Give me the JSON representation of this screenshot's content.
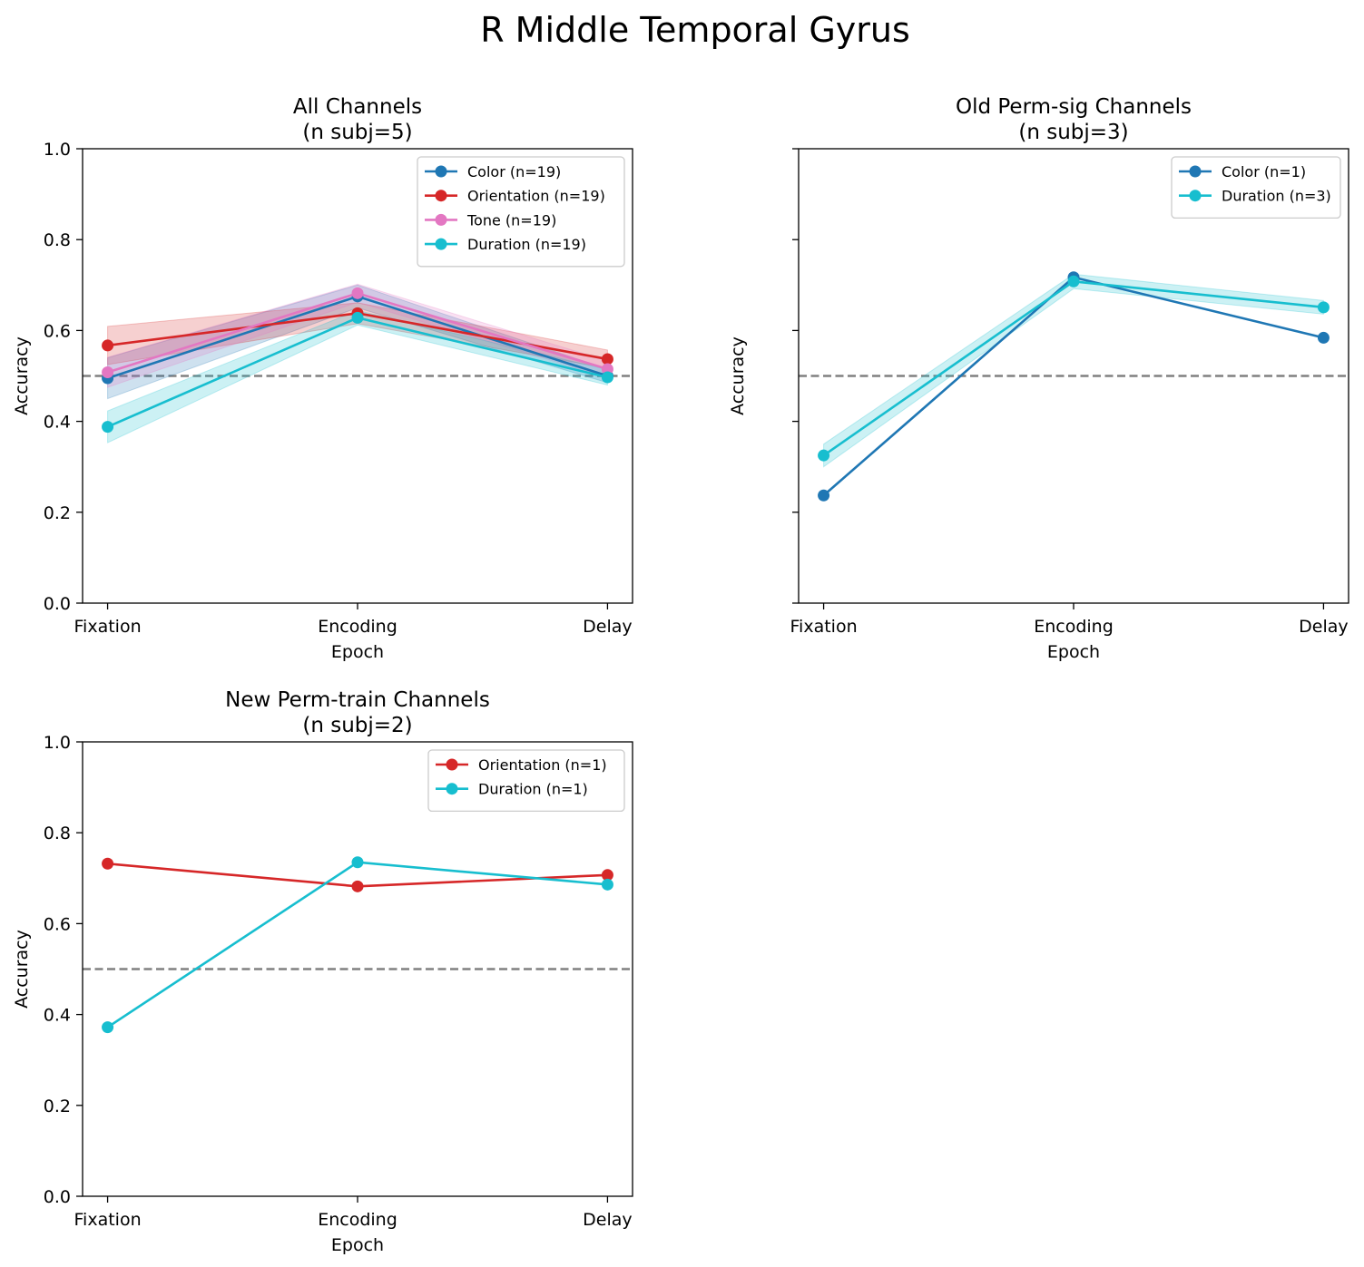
{
  "figure": {
    "suptitle": "R Middle Temporal Gyrus"
  },
  "chart_data": [
    {
      "type": "line",
      "title_line1": "All Channels",
      "title_line2": "(n subj=5)",
      "xlabel": "Epoch",
      "ylabel": "Accuracy",
      "categories": [
        "Fixation",
        "Encoding",
        "Delay"
      ],
      "ylim": [
        0,
        1
      ],
      "yticks": [
        "0.0",
        "0.2",
        "0.4",
        "0.6",
        "0.8",
        "1.0"
      ],
      "show_yticklabels": true,
      "reference_line": 0.5,
      "legend_position": "top-right",
      "series": [
        {
          "name": "Color (n=19)",
          "color": "#1f77b4",
          "values": [
            0.495,
            0.675,
            0.5
          ],
          "band_low": [
            0.45,
            0.65,
            0.485
          ],
          "band_high": [
            0.54,
            0.7,
            0.515
          ]
        },
        {
          "name": "Orientation (n=19)",
          "color": "#d62728",
          "values": [
            0.567,
            0.638,
            0.537
          ],
          "band_low": [
            0.525,
            0.615,
            0.517
          ],
          "band_high": [
            0.609,
            0.661,
            0.557
          ]
        },
        {
          "name": "Tone (n=19)",
          "color": "#e377c2",
          "values": [
            0.508,
            0.682,
            0.515
          ],
          "band_low": [
            0.475,
            0.662,
            0.497
          ],
          "band_high": [
            0.541,
            0.702,
            0.533
          ]
        },
        {
          "name": "Duration (n=19)",
          "color": "#17becf",
          "values": [
            0.388,
            0.628,
            0.497
          ],
          "band_low": [
            0.353,
            0.612,
            0.48
          ],
          "band_high": [
            0.423,
            0.644,
            0.514
          ]
        }
      ]
    },
    {
      "type": "line",
      "title_line1": "Old Perm-sig Channels",
      "title_line2": "(n subj=3)",
      "xlabel": "Epoch",
      "ylabel": "Accuracy",
      "categories": [
        "Fixation",
        "Encoding",
        "Delay"
      ],
      "ylim": [
        0,
        1
      ],
      "yticks": [
        "0.0",
        "0.2",
        "0.4",
        "0.6",
        "0.8",
        "1.0"
      ],
      "show_yticklabels": false,
      "reference_line": 0.5,
      "legend_position": "top-right",
      "series": [
        {
          "name": "Color (n=1)",
          "color": "#1f77b4",
          "values": [
            0.237,
            0.717,
            0.584
          ]
        },
        {
          "name": "Duration (n=3)",
          "color": "#17becf",
          "values": [
            0.325,
            0.708,
            0.651
          ],
          "band_low": [
            0.3,
            0.692,
            0.636
          ],
          "band_high": [
            0.35,
            0.724,
            0.666
          ]
        }
      ]
    },
    {
      "type": "line",
      "title_line1": "New Perm-train Channels",
      "title_line2": "(n subj=2)",
      "xlabel": "Epoch",
      "ylabel": "Accuracy",
      "categories": [
        "Fixation",
        "Encoding",
        "Delay"
      ],
      "ylim": [
        0,
        1
      ],
      "yticks": [
        "0.0",
        "0.2",
        "0.4",
        "0.6",
        "0.8",
        "1.0"
      ],
      "show_yticklabels": true,
      "reference_line": 0.5,
      "legend_position": "top-right",
      "series": [
        {
          "name": "Orientation (n=1)",
          "color": "#d62728",
          "values": [
            0.732,
            0.682,
            0.707
          ]
        },
        {
          "name": "Duration (n=1)",
          "color": "#17becf",
          "values": [
            0.372,
            0.735,
            0.686
          ]
        }
      ]
    }
  ]
}
